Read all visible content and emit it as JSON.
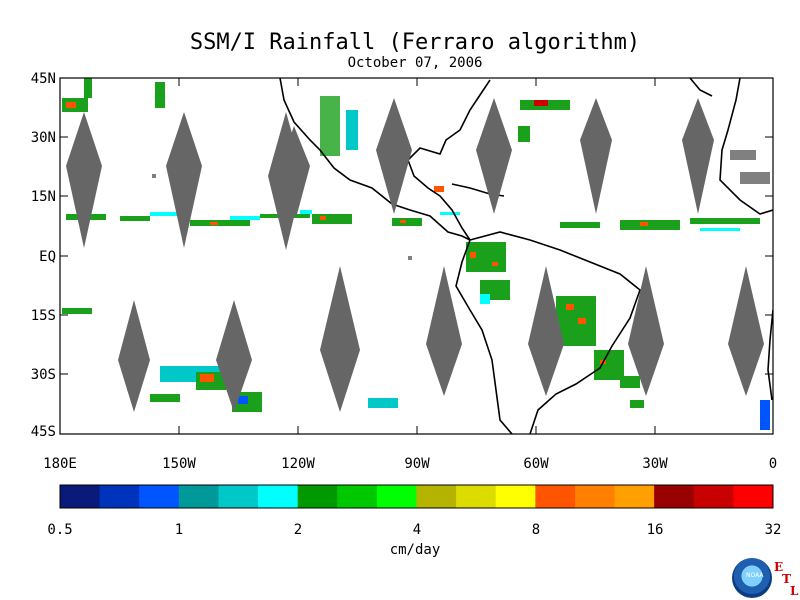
{
  "title": "SSM/I Rainfall (Ferraro algorithm)",
  "subtitle": "October 07, 2006",
  "map": {
    "lat_labels": [
      "45N",
      "30N",
      "15N",
      "EQ",
      "15S",
      "30S",
      "45S"
    ],
    "lon_labels": [
      "180E",
      "150W",
      "120W",
      "90W",
      "60W",
      "30W",
      "0"
    ]
  },
  "colorbar": {
    "colors": [
      "#0a1a7a",
      "#0033bb",
      "#0055ff",
      "#009999",
      "#00c8c8",
      "#00ffff",
      "#009900",
      "#00c800",
      "#00ff00",
      "#b4b400",
      "#dcdc00",
      "#ffff00",
      "#ff5500",
      "#ff7f00",
      "#ffa000",
      "#990000",
      "#c80000",
      "#ff0000"
    ],
    "tick_labels": [
      "0.5",
      "1",
      "2",
      "4",
      "8",
      "16",
      "32"
    ],
    "units": "cm/day"
  },
  "logo": {
    "agency": "NOAA",
    "letters": [
      "E",
      "T",
      "L"
    ]
  }
}
